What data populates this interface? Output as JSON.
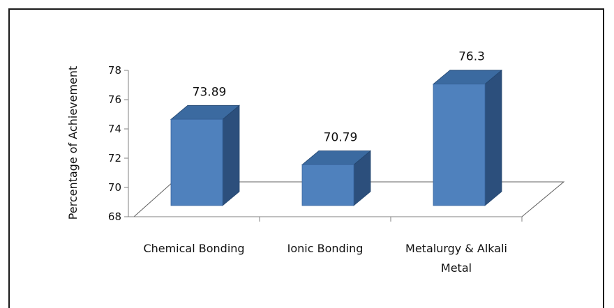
{
  "chart_data": {
    "type": "bar",
    "style": "3d",
    "title": "",
    "xlabel": "",
    "ylabel": "Percentage of Achievement",
    "ylim": [
      68,
      78
    ],
    "yticks": [
      68,
      70,
      72,
      74,
      76,
      78
    ],
    "categories": [
      [
        "Chemical Bonding"
      ],
      [
        "Ionic Bonding"
      ],
      [
        "Metalurgy & Alkali",
        "Metal"
      ]
    ],
    "values": [
      73.89,
      70.79,
      76.3
    ],
    "data_labels": [
      "73.89",
      "70.79",
      "76.3"
    ],
    "grid": false,
    "legend": "none",
    "colors": {
      "bar_front": "#4f81bd",
      "bar_top": "#3b6aa0",
      "bar_side": "#2c4f7c",
      "axis": "#808080",
      "floor": "#606060"
    }
  }
}
